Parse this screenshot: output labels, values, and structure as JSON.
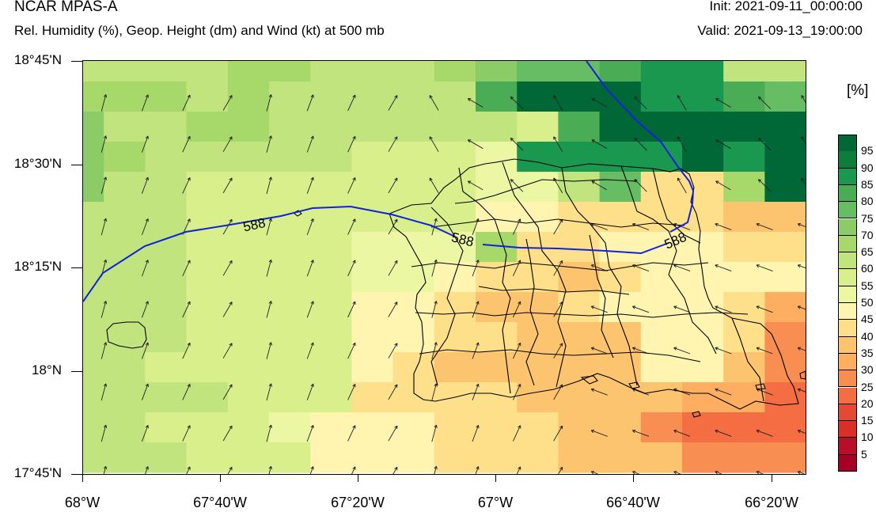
{
  "header": {
    "title": "NCAR MPAS-A",
    "subtitle": "Rel. Humidity (%), Geop. Height (dm) and Wind (kt) at 500 mb",
    "init": "Init: 2021-09-11_00:00:00",
    "valid": "Valid: 2021-09-13_19:00:00"
  },
  "axes": {
    "y_labels": [
      "18°45'N",
      "18°30'N",
      "18°15'N",
      "18°N",
      "17°45'N"
    ],
    "x_labels": [
      "68°W",
      "67°40'W",
      "67°20'W",
      "67°W",
      "66°40'W",
      "66°20'W"
    ]
  },
  "colorbar": {
    "unit": "[%]",
    "labels": [
      "95",
      "90",
      "85",
      "80",
      "75",
      "70",
      "65",
      "60",
      "55",
      "50",
      "45",
      "40",
      "35",
      "30",
      "25",
      "20",
      "15",
      "10",
      "5"
    ],
    "colors": [
      "#006837",
      "#0e7c3b",
      "#1a9850",
      "#4aac55",
      "#66bd63",
      "#8ccc67",
      "#a6d96a",
      "#c2e47f",
      "#d9ef8b",
      "#ecf7a4",
      "#fff4b0",
      "#fee08b",
      "#fdc46f",
      "#fdae61",
      "#f98e52",
      "#f46d43",
      "#e34933",
      "#d73027",
      "#b70e2a",
      "#a50026"
    ]
  },
  "contour": {
    "label": "588"
  },
  "colors": {
    "contour": "#1122dd",
    "border": "#000000"
  }
}
